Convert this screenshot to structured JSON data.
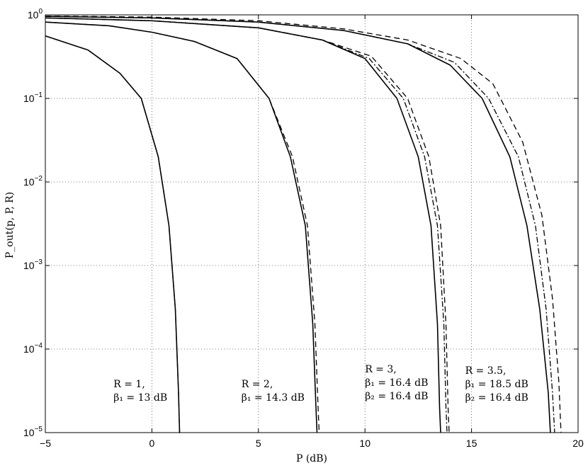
{
  "chart_data": {
    "type": "line",
    "xlabel": "P (dB)",
    "ylabel": "P_out(p, P, R)",
    "xlim": [
      -5,
      20
    ],
    "ylim": [
      1e-05,
      1
    ],
    "yscale": "log",
    "grid": "dotted",
    "x_ticks": [
      -5,
      0,
      5,
      10,
      15,
      20
    ],
    "x_tick_labels": [
      "−5",
      "0",
      "5",
      "10",
      "15",
      "20"
    ],
    "y_ticks": [
      {
        "value": 1,
        "base": "10",
        "exp": "0"
      },
      {
        "value": 0.1,
        "base": "10",
        "exp": "−1"
      },
      {
        "value": 0.01,
        "base": "10",
        "exp": "−2"
      },
      {
        "value": 0.001,
        "base": "10",
        "exp": "−3"
      },
      {
        "value": 0.0001,
        "base": "10",
        "exp": "−4"
      },
      {
        "value": 1e-05,
        "base": "10",
        "exp": "−5"
      }
    ],
    "series": [
      {
        "style": "solid",
        "group": "R=1",
        "x": [
          -5,
          -3,
          -1.5,
          -0.5,
          0.3,
          0.8,
          1.1,
          1.25,
          1.3,
          1.32
        ],
        "y": [
          0.56,
          0.38,
          0.2,
          0.1,
          0.02,
          0.003,
          0.0003,
          3e-05,
          1e-05,
          1e-05
        ]
      },
      {
        "style": "dashed",
        "group": "R=1",
        "x": [
          -5,
          -3,
          -1.5,
          -0.5,
          0.3,
          0.8,
          1.1,
          1.25,
          1.3,
          1.32
        ],
        "y": [
          0.56,
          0.38,
          0.2,
          0.1,
          0.02,
          0.003,
          0.0003,
          3e-05,
          1e-05,
          1e-05
        ]
      },
      {
        "style": "solid",
        "group": "R=2",
        "x": [
          -5,
          -2,
          0,
          2,
          4,
          5.5,
          6.5,
          7.2,
          7.55,
          7.7,
          7.75
        ],
        "y": [
          0.82,
          0.74,
          0.62,
          0.48,
          0.3,
          0.1,
          0.02,
          0.003,
          0.0002,
          2e-05,
          1e-05
        ]
      },
      {
        "style": "dashed",
        "group": "R=2",
        "x": [
          -5,
          -2,
          0,
          2,
          4,
          5.5,
          6.6,
          7.3,
          7.65,
          7.8,
          7.85
        ],
        "y": [
          0.82,
          0.74,
          0.62,
          0.48,
          0.3,
          0.1,
          0.02,
          0.003,
          0.0002,
          2e-05,
          1e-05
        ]
      },
      {
        "style": "solid",
        "group": "R=3",
        "x": [
          -5,
          0,
          5,
          8,
          10,
          11.5,
          12.5,
          13.1,
          13.4,
          13.5,
          13.55
        ],
        "y": [
          0.92,
          0.85,
          0.7,
          0.5,
          0.3,
          0.1,
          0.02,
          0.003,
          0.0002,
          2e-05,
          1e-05
        ]
      },
      {
        "style": "dashdot",
        "group": "R=3",
        "x": [
          -5,
          0,
          5,
          8,
          10.2,
          11.8,
          12.8,
          13.4,
          13.7,
          13.8,
          13.85
        ],
        "y": [
          0.92,
          0.85,
          0.7,
          0.5,
          0.3,
          0.1,
          0.02,
          0.003,
          0.0002,
          2e-05,
          1e-05
        ]
      },
      {
        "style": "dashed",
        "group": "R=3",
        "x": [
          -5,
          0,
          5,
          8,
          10.3,
          12,
          13,
          13.55,
          13.8,
          13.9,
          13.95
        ],
        "y": [
          0.92,
          0.85,
          0.7,
          0.5,
          0.32,
          0.1,
          0.02,
          0.003,
          0.0002,
          2e-05,
          1e-05
        ]
      },
      {
        "style": "solid",
        "group": "R=3.5",
        "x": [
          -5,
          0,
          5,
          9,
          12,
          14,
          15.5,
          16.8,
          17.6,
          18.2,
          18.6,
          18.7
        ],
        "y": [
          0.96,
          0.92,
          0.82,
          0.65,
          0.45,
          0.25,
          0.1,
          0.02,
          0.003,
          0.0003,
          3e-05,
          1e-05
        ]
      },
      {
        "style": "dashdot",
        "group": "R=3.5",
        "x": [
          -5,
          0,
          5,
          9,
          12,
          14.2,
          15.8,
          17.2,
          18,
          18.5,
          18.8,
          18.9
        ],
        "y": [
          0.96,
          0.92,
          0.82,
          0.65,
          0.45,
          0.27,
          0.1,
          0.02,
          0.003,
          0.0003,
          3e-05,
          1e-05
        ]
      },
      {
        "style": "dashed",
        "group": "R=3.5",
        "x": [
          -5,
          0,
          5,
          9,
          12,
          14.5,
          16,
          17.4,
          18.3,
          18.8,
          19.1,
          19.2
        ],
        "y": [
          0.97,
          0.94,
          0.85,
          0.68,
          0.5,
          0.3,
          0.15,
          0.03,
          0.004,
          0.0004,
          4e-05,
          1e-05
        ]
      }
    ],
    "annotations": [
      {
        "lines": [
          "R = 1,",
          "β₁ = 13 dB"
        ],
        "x": -1.8,
        "y": 2.6e-05
      },
      {
        "lines": [
          "R = 2,",
          "β₁ = 14.3 dB"
        ],
        "x": 4.2,
        "y": 2.6e-05
      },
      {
        "lines": [
          "R = 3,",
          "β₁ = 16.4 dB",
          "β₂ = 16.4 dB"
        ],
        "x": 10,
        "y": 2.7e-05
      },
      {
        "lines": [
          "R = 3.5,",
          "β₁ = 18.5 dB",
          "β₂ = 16.4 dB"
        ],
        "x": 14.7,
        "y": 2.6e-05
      }
    ]
  }
}
